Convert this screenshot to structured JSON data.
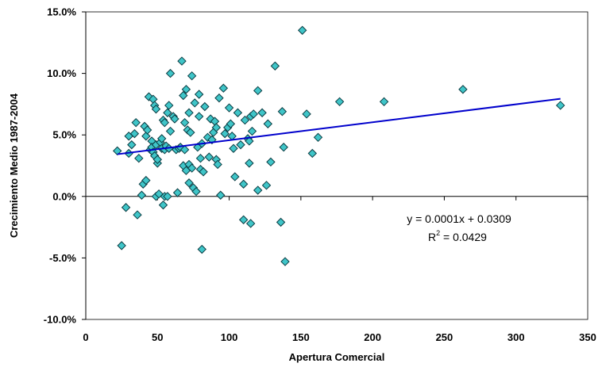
{
  "chart_data": {
    "type": "scatter",
    "xlabel": "Apertura Comercial",
    "ylabel": "Crecimiento Medio 1987-2004",
    "xlim": [
      0,
      350
    ],
    "ylim": [
      -10,
      15
    ],
    "x_ticks": [
      0,
      50,
      100,
      150,
      200,
      250,
      300,
      350
    ],
    "y_ticks": [
      -10,
      -5,
      0,
      5,
      10,
      15
    ],
    "x_tick_labels": [
      "0",
      "50",
      "100",
      "150",
      "200",
      "250",
      "300",
      "350"
    ],
    "y_tick_labels": [
      "-10.0%",
      "-5.0%",
      "0.0%",
      "5.0%",
      "10.0%",
      "15.0%"
    ],
    "grid": false,
    "marker_color": "#3fc5c8",
    "marker_edge": "#0b3c42",
    "series": [
      {
        "points": [
          [
            22,
            3.7
          ],
          [
            25,
            -4.0
          ],
          [
            28,
            -0.9
          ],
          [
            30,
            3.5
          ],
          [
            30,
            4.9
          ],
          [
            32,
            4.2
          ],
          [
            34,
            5.1
          ],
          [
            35,
            6.0
          ],
          [
            36,
            -1.5
          ],
          [
            37,
            3.1
          ],
          [
            39,
            0.1
          ],
          [
            40,
            1.0
          ],
          [
            41,
            5.7
          ],
          [
            42,
            1.3
          ],
          [
            42,
            4.9
          ],
          [
            43,
            5.4
          ],
          [
            44,
            8.1
          ],
          [
            45,
            3.8
          ],
          [
            46,
            4.5
          ],
          [
            46,
            4.0
          ],
          [
            47,
            3.6
          ],
          [
            47,
            7.9
          ],
          [
            48,
            3.3
          ],
          [
            48,
            7.4
          ],
          [
            49,
            4.2
          ],
          [
            49,
            7.1
          ],
          [
            49,
            0.0
          ],
          [
            50,
            2.7
          ],
          [
            50,
            3.0
          ],
          [
            51,
            0.2
          ],
          [
            52,
            4.4
          ],
          [
            53,
            4.7
          ],
          [
            53,
            3.9
          ],
          [
            54,
            6.2
          ],
          [
            54,
            -0.7
          ],
          [
            55,
            6.0
          ],
          [
            55,
            3.8
          ],
          [
            55,
            0.0
          ],
          [
            56,
            4.1
          ],
          [
            57,
            6.8
          ],
          [
            57,
            0.0
          ],
          [
            58,
            7.4
          ],
          [
            58,
            3.9
          ],
          [
            59,
            5.3
          ],
          [
            59,
            10.0
          ],
          [
            61,
            6.5
          ],
          [
            62,
            6.3
          ],
          [
            63,
            3.8
          ],
          [
            64,
            0.3
          ],
          [
            65,
            3.9
          ],
          [
            66,
            4.0
          ],
          [
            67,
            11.0
          ],
          [
            68,
            2.5
          ],
          [
            68,
            8.2
          ],
          [
            69,
            6.0
          ],
          [
            69,
            3.8
          ],
          [
            70,
            2.1
          ],
          [
            70,
            8.7
          ],
          [
            71,
            5.4
          ],
          [
            72,
            2.6
          ],
          [
            72,
            6.8
          ],
          [
            72,
            1.1
          ],
          [
            73,
            5.2
          ],
          [
            74,
            9.8
          ],
          [
            74,
            2.3
          ],
          [
            75,
            0.7
          ],
          [
            76,
            7.6
          ],
          [
            77,
            0.4
          ],
          [
            78,
            4.0
          ],
          [
            79,
            6.5
          ],
          [
            79,
            8.3
          ],
          [
            80,
            2.2
          ],
          [
            80,
            3.1
          ],
          [
            81,
            -4.3
          ],
          [
            81,
            4.3
          ],
          [
            82,
            2.0
          ],
          [
            83,
            7.3
          ],
          [
            85,
            4.8
          ],
          [
            86,
            3.2
          ],
          [
            87,
            6.3
          ],
          [
            88,
            4.6
          ],
          [
            89,
            5.2
          ],
          [
            90,
            6.1
          ],
          [
            91,
            5.6
          ],
          [
            91,
            3.0
          ],
          [
            92,
            2.6
          ],
          [
            93,
            8.0
          ],
          [
            94,
            0.1
          ],
          [
            96,
            8.8
          ],
          [
            97,
            5.1
          ],
          [
            99,
            5.6
          ],
          [
            100,
            7.2
          ],
          [
            101,
            5.9
          ],
          [
            102,
            4.9
          ],
          [
            103,
            3.9
          ],
          [
            104,
            1.6
          ],
          [
            106,
            6.8
          ],
          [
            108,
            4.2
          ],
          [
            110,
            1.0
          ],
          [
            110,
            -1.9
          ],
          [
            111,
            6.2
          ],
          [
            113,
            4.7
          ],
          [
            114,
            2.7
          ],
          [
            114,
            4.5
          ],
          [
            115,
            6.5
          ],
          [
            115,
            -2.2
          ],
          [
            116,
            5.3
          ],
          [
            117,
            6.7
          ],
          [
            120,
            0.5
          ],
          [
            120,
            8.6
          ],
          [
            123,
            6.8
          ],
          [
            126,
            0.9
          ],
          [
            127,
            5.9
          ],
          [
            129,
            2.8
          ],
          [
            132,
            10.6
          ],
          [
            136,
            -2.1
          ],
          [
            137,
            6.9
          ],
          [
            138,
            4.0
          ],
          [
            139,
            -5.3
          ],
          [
            151,
            13.5
          ],
          [
            154,
            6.7
          ],
          [
            158,
            3.5
          ],
          [
            162,
            4.8
          ],
          [
            177,
            7.7
          ],
          [
            208,
            7.7
          ],
          [
            263,
            8.7
          ],
          [
            331,
            7.4
          ]
        ]
      }
    ],
    "trendline": {
      "color": "#0000cc",
      "x_range": [
        22,
        331
      ],
      "y_range": [
        3.43,
        7.94
      ],
      "equation": "y = 0.0001x + 0.0309",
      "r2_prefix": "R",
      "r2_sup": "2",
      "r2_value": " = 0.0429"
    }
  }
}
